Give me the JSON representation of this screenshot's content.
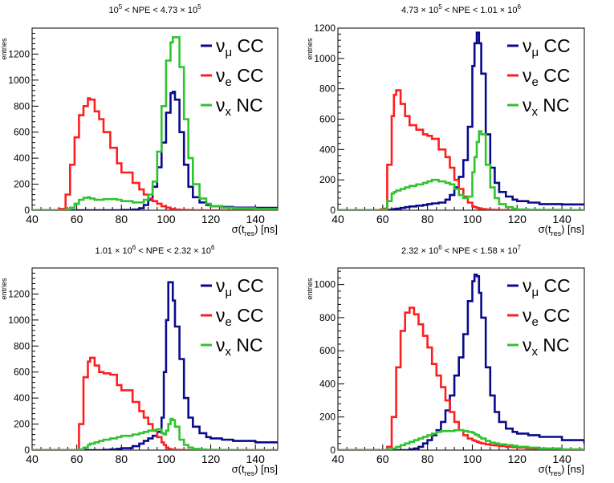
{
  "figure": {
    "x_axis_label": "σ(t",
    "x_axis_label_sub": "res",
    "x_axis_label_tail": ") [ns]",
    "y_axis_label": "entries"
  },
  "legend": [
    {
      "name": "νμ CC",
      "symbol": "ν",
      "sub": "μ",
      "suffix": " CC",
      "color": "#0a0a8c"
    },
    {
      "name": "νe CC",
      "symbol": "ν",
      "sub": "e",
      "suffix": " CC",
      "color": "#ff1e1e"
    },
    {
      "name": "νx NC",
      "symbol": "ν",
      "sub": "x",
      "suffix": " NC",
      "color": "#2ec42e"
    }
  ],
  "chart_data": [
    {
      "type": "line",
      "title": "10^5 < NPE < 4.73 × 10^5",
      "title_parts": [
        "10",
        "5",
        " < NPE < 4.73 × 10",
        "5"
      ],
      "xlabel": "σ(t_res) [ns]",
      "ylabel": "entries",
      "xlim": [
        40,
        150
      ],
      "ylim": [
        0,
        1400
      ],
      "xticks": [
        40,
        60,
        80,
        100,
        120,
        140
      ],
      "yticks": [
        0,
        200,
        400,
        600,
        800,
        1000,
        1200
      ],
      "x": [
        40,
        45,
        50,
        52,
        55,
        57,
        59,
        61,
        63,
        65,
        66,
        68,
        70,
        72,
        75,
        78,
        80,
        85,
        88,
        90,
        92,
        94,
        96,
        98,
        100,
        102,
        103,
        104,
        106,
        108,
        110,
        112,
        115,
        118,
        120,
        125,
        130,
        140,
        150
      ],
      "series": [
        {
          "name": "νμ CC",
          "values": [
            0,
            0,
            0,
            0,
            0,
            0,
            0,
            0,
            0,
            0,
            0,
            0,
            0,
            0,
            0,
            0,
            2,
            5,
            15,
            40,
            80,
            180,
            330,
            520,
            750,
            900,
            910,
            850,
            600,
            350,
            180,
            100,
            60,
            40,
            30,
            25,
            20,
            18,
            15
          ]
        },
        {
          "name": "νe CC",
          "values": [
            0,
            0,
            0,
            10,
            120,
            350,
            560,
            730,
            800,
            860,
            850,
            760,
            700,
            600,
            480,
            360,
            290,
            210,
            160,
            120,
            90,
            70,
            50,
            30,
            20,
            10,
            8,
            5,
            3,
            2,
            1,
            0,
            0,
            0,
            0,
            0,
            0,
            0,
            0
          ]
        },
        {
          "name": "νx NC",
          "values": [
            0,
            0,
            0,
            0,
            5,
            20,
            50,
            80,
            95,
            100,
            90,
            80,
            80,
            85,
            85,
            80,
            70,
            60,
            60,
            80,
            120,
            220,
            450,
            800,
            1150,
            1290,
            1330,
            1330,
            1100,
            700,
            400,
            200,
            90,
            50,
            30,
            20,
            15,
            10,
            8
          ]
        }
      ]
    },
    {
      "type": "line",
      "title": "4.73 × 10^5 < NPE < 1.01 × 10^6",
      "title_parts": [
        "4.73 × 10",
        "5",
        " < NPE < 1.01 × 10",
        "6"
      ],
      "xlabel": "σ(t_res) [ns]",
      "ylabel": "entries",
      "xlim": [
        40,
        150
      ],
      "ylim": [
        0,
        1200
      ],
      "xticks": [
        40,
        60,
        80,
        100,
        120,
        140
      ],
      "yticks": [
        0,
        200,
        400,
        600,
        800,
        1000,
        1200
      ],
      "x": [
        40,
        45,
        50,
        55,
        57,
        59,
        60,
        62,
        64,
        65,
        66,
        68,
        70,
        72,
        75,
        78,
        80,
        82,
        85,
        88,
        90,
        92,
        94,
        96,
        98,
        100,
        101,
        102,
        103,
        104,
        106,
        108,
        110,
        112,
        115,
        118,
        120,
        125,
        130,
        140,
        150
      ],
      "series": [
        {
          "name": "νμ CC",
          "values": [
            0,
            0,
            0,
            0,
            0,
            0,
            0,
            2,
            5,
            8,
            10,
            15,
            20,
            25,
            30,
            35,
            40,
            45,
            50,
            70,
            100,
            150,
            220,
            330,
            550,
            950,
            1100,
            1170,
            1100,
            900,
            500,
            280,
            180,
            120,
            90,
            70,
            60,
            50,
            40,
            38,
            40
          ]
        },
        {
          "name": "νe CC",
          "values": [
            0,
            0,
            0,
            0,
            0,
            5,
            10,
            300,
            620,
            760,
            790,
            700,
            620,
            560,
            530,
            500,
            490,
            470,
            400,
            350,
            280,
            200,
            140,
            90,
            50,
            25,
            20,
            15,
            10,
            8,
            5,
            3,
            2,
            1,
            0,
            0,
            0,
            0,
            0,
            0,
            0
          ]
        },
        {
          "name": "νx NC",
          "values": [
            0,
            0,
            0,
            0,
            0,
            0,
            5,
            60,
            110,
            120,
            130,
            140,
            150,
            160,
            170,
            180,
            190,
            200,
            190,
            180,
            170,
            140,
            100,
            80,
            90,
            250,
            350,
            450,
            520,
            500,
            300,
            150,
            80,
            40,
            20,
            10,
            5,
            3,
            2,
            1,
            0
          ]
        }
      ]
    },
    {
      "type": "line",
      "title": "1.01 × 10^6 < NPE < 2.32 × 10^6",
      "title_parts": [
        "1.01 × 10",
        "6",
        " < NPE < 2.32 × 10",
        "6"
      ],
      "xlabel": "σ(t_res) [ns]",
      "ylabel": "entries",
      "xlim": [
        40,
        150
      ],
      "ylim": [
        0,
        1400
      ],
      "xticks": [
        40,
        60,
        80,
        100,
        120,
        140
      ],
      "yticks": [
        0,
        200,
        400,
        600,
        800,
        1000,
        1200
      ],
      "x": [
        40,
        45,
        50,
        55,
        57,
        59,
        61,
        63,
        65,
        66,
        68,
        70,
        72,
        75,
        78,
        80,
        85,
        88,
        90,
        92,
        94,
        96,
        98,
        99,
        100,
        101,
        102,
        103,
        104,
        106,
        108,
        110,
        112,
        115,
        118,
        120,
        125,
        130,
        140,
        150
      ],
      "series": [
        {
          "name": "νμ CC",
          "values": [
            0,
            0,
            0,
            0,
            0,
            0,
            0,
            0,
            0,
            0,
            0,
            0,
            2,
            5,
            10,
            15,
            30,
            50,
            70,
            90,
            110,
            140,
            250,
            600,
            1000,
            1290,
            1290,
            1150,
            950,
            700,
            400,
            250,
            180,
            130,
            100,
            90,
            80,
            70,
            60,
            55
          ]
        },
        {
          "name": "νe CC",
          "values": [
            0,
            0,
            0,
            0,
            0,
            0,
            200,
            560,
            680,
            710,
            650,
            600,
            590,
            580,
            500,
            460,
            370,
            300,
            250,
            200,
            150,
            100,
            60,
            40,
            20,
            10,
            5,
            3,
            2,
            1,
            0,
            0,
            0,
            0,
            0,
            0,
            0,
            0,
            0,
            0
          ]
        },
        {
          "name": "νx NC",
          "values": [
            0,
            0,
            0,
            0,
            0,
            0,
            5,
            20,
            40,
            50,
            60,
            70,
            80,
            90,
            100,
            110,
            120,
            130,
            140,
            150,
            155,
            160,
            130,
            120,
            150,
            200,
            240,
            230,
            180,
            80,
            40,
            20,
            10,
            5,
            3,
            2,
            1,
            0,
            0,
            0
          ]
        }
      ]
    },
    {
      "type": "line",
      "title": "2.32 × 10^6 < NPE < 1.58 × 10^7",
      "title_parts": [
        "2.32 × 10",
        "6",
        " < NPE < 1.58 × 10",
        "7"
      ],
      "xlabel": "σ(t_res) [ns]",
      "ylabel": "entries",
      "xlim": [
        40,
        150
      ],
      "ylim": [
        0,
        1100
      ],
      "xticks": [
        40,
        60,
        80,
        100,
        120,
        140
      ],
      "yticks": [
        0,
        200,
        400,
        600,
        800,
        1000
      ],
      "x": [
        40,
        45,
        50,
        55,
        60,
        62,
        64,
        66,
        68,
        70,
        72,
        74,
        76,
        78,
        80,
        82,
        84,
        86,
        88,
        90,
        92,
        94,
        96,
        98,
        100,
        101,
        102,
        103,
        104,
        106,
        108,
        110,
        112,
        115,
        118,
        120,
        125,
        130,
        140,
        150
      ],
      "series": [
        {
          "name": "νμ CC",
          "values": [
            0,
            0,
            0,
            0,
            0,
            0,
            0,
            0,
            0,
            0,
            5,
            10,
            20,
            40,
            60,
            90,
            120,
            170,
            240,
            330,
            450,
            560,
            700,
            900,
            1020,
            1060,
            1050,
            950,
            800,
            500,
            330,
            230,
            170,
            130,
            110,
            100,
            90,
            80,
            60,
            40
          ]
        },
        {
          "name": "νe CC",
          "values": [
            0,
            0,
            0,
            0,
            0,
            20,
            200,
            500,
            720,
            830,
            860,
            820,
            760,
            690,
            620,
            520,
            450,
            380,
            300,
            230,
            170,
            120,
            90,
            70,
            60,
            55,
            50,
            45,
            40,
            35,
            30,
            28,
            25,
            20,
            18,
            15,
            10,
            5,
            2,
            0
          ]
        },
        {
          "name": "νx NC",
          "values": [
            0,
            0,
            0,
            0,
            0,
            5,
            10,
            20,
            30,
            40,
            50,
            60,
            70,
            80,
            90,
            100,
            110,
            115,
            115,
            115,
            120,
            120,
            115,
            110,
            105,
            95,
            90,
            80,
            70,
            55,
            45,
            40,
            35,
            30,
            25,
            20,
            15,
            10,
            5,
            2
          ]
        }
      ]
    }
  ]
}
